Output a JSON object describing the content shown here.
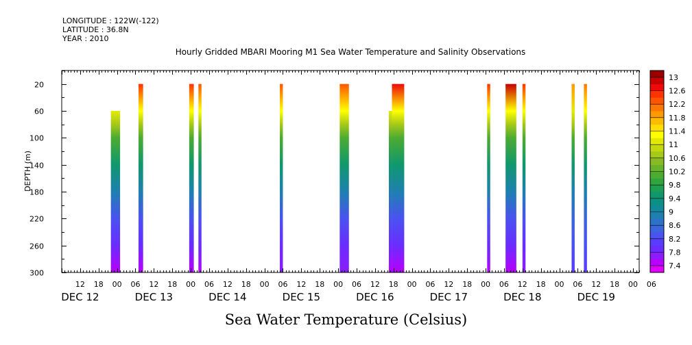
{
  "header": {
    "longitude": "LONGITUDE : 122W(-122)",
    "latitude": "LATITUDE : 36.8N",
    "year": "YEAR : 2010"
  },
  "chart_data": {
    "type": "heatmap",
    "title": "Hourly Gridded MBARI Mooring M1 Sea Water Temperature and Salinity Observations",
    "subtitle": "Sea Water Temperature (Celsius)",
    "xlabel": "",
    "ylabel": "DEPTH (m)",
    "x_unit": "hours since DEC 12 00:00, 2010",
    "xlim": [
      6,
      194
    ],
    "ylim": [
      300,
      0
    ],
    "y_ticks": [
      20,
      60,
      100,
      140,
      180,
      220,
      260,
      300
    ],
    "x_hour_ticks": [
      {
        "t": 12,
        "label": "12"
      },
      {
        "t": 18,
        "label": "18"
      },
      {
        "t": 24,
        "label": "00"
      },
      {
        "t": 30,
        "label": "06"
      },
      {
        "t": 36,
        "label": "12"
      },
      {
        "t": 42,
        "label": "18"
      },
      {
        "t": 48,
        "label": "00"
      },
      {
        "t": 54,
        "label": "06"
      },
      {
        "t": 60,
        "label": "12"
      },
      {
        "t": 66,
        "label": "18"
      },
      {
        "t": 72,
        "label": "00"
      },
      {
        "t": 78,
        "label": "06"
      },
      {
        "t": 84,
        "label": "12"
      },
      {
        "t": 90,
        "label": "18"
      },
      {
        "t": 96,
        "label": "00"
      },
      {
        "t": 102,
        "label": "06"
      },
      {
        "t": 108,
        "label": "12"
      },
      {
        "t": 114,
        "label": "18"
      },
      {
        "t": 120,
        "label": "00"
      },
      {
        "t": 126,
        "label": "06"
      },
      {
        "t": 132,
        "label": "12"
      },
      {
        "t": 138,
        "label": "18"
      },
      {
        "t": 144,
        "label": "00"
      },
      {
        "t": 150,
        "label": "06"
      },
      {
        "t": 156,
        "label": "12"
      },
      {
        "t": 162,
        "label": "18"
      },
      {
        "t": 168,
        "label": "00"
      },
      {
        "t": 174,
        "label": "06"
      },
      {
        "t": 180,
        "label": "12"
      },
      {
        "t": 186,
        "label": "18"
      },
      {
        "t": 192,
        "label": "00"
      },
      {
        "t": 198,
        "label": "06"
      }
    ],
    "x_day_labels": [
      {
        "t": 12,
        "label": "DEC 12"
      },
      {
        "t": 36,
        "label": "DEC 13"
      },
      {
        "t": 60,
        "label": "DEC 14"
      },
      {
        "t": 84,
        "label": "DEC 15"
      },
      {
        "t": 108,
        "label": "DEC 16"
      },
      {
        "t": 132,
        "label": "DEC 17"
      },
      {
        "t": 156,
        "label": "DEC 18"
      },
      {
        "t": 180,
        "label": "DEC 19"
      }
    ],
    "colorbar": {
      "levels": [
        7.4,
        7.6,
        7.8,
        8.0,
        8.2,
        8.4,
        8.6,
        8.8,
        9.0,
        9.2,
        9.4,
        9.6,
        9.8,
        10.0,
        10.2,
        10.4,
        10.6,
        10.8,
        11.0,
        11.2,
        11.4,
        11.6,
        11.8,
        12.0,
        12.2,
        12.4,
        12.6,
        12.8,
        13.0
      ],
      "labels": [
        "7.4",
        "7.8",
        "8.2",
        "8.6",
        "9",
        "9.4",
        "9.8",
        "10.2",
        "10.6",
        "11",
        "11.4",
        "11.8",
        "12.2",
        "12.6",
        "13"
      ],
      "colors": [
        "#e100ff",
        "#b800ff",
        "#8c1cff",
        "#6a2cff",
        "#5a3cff",
        "#4a52f0",
        "#3a66dd",
        "#2c72c8",
        "#1e80b0",
        "#11899a",
        "#0b9184",
        "#0f986d",
        "#1c9f52",
        "#30a53c",
        "#4cab31",
        "#68b22c",
        "#88bb22",
        "#a6c818",
        "#c4d80e",
        "#e2ea04",
        "#ffff00",
        "#ffdd00",
        "#ffbb00",
        "#ff9900",
        "#ff7700",
        "#ff5500",
        "#ff3300",
        "#ee0a0a",
        "#c80000",
        "#9a0000"
      ]
    },
    "columns": [
      {
        "t0": 22.0,
        "t1": 25.0,
        "top": 60,
        "bottom": 300,
        "temps": [
          [
            60,
            11.1
          ],
          [
            80,
            10.6
          ],
          [
            100,
            10.0
          ],
          [
            140,
            9.4
          ],
          [
            180,
            8.9
          ],
          [
            220,
            8.3
          ],
          [
            260,
            7.9
          ],
          [
            300,
            7.5
          ]
        ]
      },
      {
        "t0": 31.0,
        "t1": 32.5,
        "top": 20,
        "bottom": 300,
        "temps": [
          [
            20,
            12.4
          ],
          [
            60,
            11.3
          ],
          [
            80,
            10.6
          ],
          [
            100,
            10.1
          ],
          [
            140,
            9.4
          ],
          [
            180,
            8.9
          ],
          [
            220,
            8.3
          ],
          [
            260,
            7.9
          ],
          [
            300,
            7.5
          ]
        ]
      },
      {
        "t0": 47.5,
        "t1": 49.0,
        "top": 20,
        "bottom": 300,
        "temps": [
          [
            20,
            12.4
          ],
          [
            60,
            11.3
          ],
          [
            80,
            10.6
          ],
          [
            100,
            10.1
          ],
          [
            140,
            9.4
          ],
          [
            180,
            8.9
          ],
          [
            220,
            8.3
          ],
          [
            260,
            7.9
          ],
          [
            300,
            7.5
          ]
        ]
      },
      {
        "t0": 50.5,
        "t1": 51.5,
        "top": 20,
        "bottom": 300,
        "temps": [
          [
            20,
            12.2
          ],
          [
            60,
            11.2
          ],
          [
            80,
            10.6
          ],
          [
            100,
            10.1
          ],
          [
            140,
            9.4
          ],
          [
            180,
            8.9
          ],
          [
            220,
            8.3
          ],
          [
            260,
            7.9
          ],
          [
            300,
            7.5
          ]
        ]
      },
      {
        "t0": 77.0,
        "t1": 78.0,
        "top": 20,
        "bottom": 300,
        "temps": [
          [
            20,
            12.2
          ],
          [
            60,
            11.3
          ],
          [
            80,
            10.6
          ],
          [
            100,
            10.1
          ],
          [
            140,
            9.4
          ],
          [
            180,
            8.9
          ],
          [
            220,
            8.3
          ],
          [
            260,
            7.9
          ],
          [
            300,
            7.6
          ]
        ]
      },
      {
        "t0": 96.5,
        "t1": 99.5,
        "top": 20,
        "bottom": 300,
        "temps": [
          [
            20,
            12.2
          ],
          [
            60,
            11.3
          ],
          [
            80,
            10.7
          ],
          [
            100,
            10.1
          ],
          [
            140,
            9.4
          ],
          [
            180,
            8.9
          ],
          [
            220,
            8.3
          ],
          [
            260,
            7.9
          ],
          [
            300,
            7.6
          ]
        ]
      },
      {
        "t0": 112.5,
        "t1": 113.5,
        "top": 60,
        "bottom": 300,
        "temps": [
          [
            60,
            11.1
          ],
          [
            80,
            10.6
          ],
          [
            100,
            10.0
          ],
          [
            140,
            9.4
          ],
          [
            180,
            8.9
          ],
          [
            220,
            8.3
          ],
          [
            260,
            7.9
          ],
          [
            300,
            7.5
          ]
        ]
      },
      {
        "t0": 113.5,
        "t1": 117.5,
        "top": 20,
        "bottom": 300,
        "temps": [
          [
            20,
            12.6
          ],
          [
            60,
            11.3
          ],
          [
            80,
            10.7
          ],
          [
            100,
            10.1
          ],
          [
            140,
            9.4
          ],
          [
            180,
            8.9
          ],
          [
            220,
            8.3
          ],
          [
            260,
            7.9
          ],
          [
            300,
            7.5
          ]
        ]
      },
      {
        "t0": 144.5,
        "t1": 145.5,
        "top": 20,
        "bottom": 300,
        "temps": [
          [
            20,
            12.4
          ],
          [
            60,
            11.2
          ],
          [
            80,
            10.6
          ],
          [
            100,
            10.1
          ],
          [
            140,
            9.4
          ],
          [
            180,
            8.9
          ],
          [
            220,
            8.3
          ],
          [
            260,
            7.9
          ],
          [
            300,
            7.5
          ]
        ]
      },
      {
        "t0": 150.5,
        "t1": 154.0,
        "top": 20,
        "bottom": 300,
        "temps": [
          [
            20,
            12.8
          ],
          [
            60,
            11.3
          ],
          [
            80,
            10.6
          ],
          [
            100,
            10.1
          ],
          [
            140,
            9.4
          ],
          [
            180,
            8.9
          ],
          [
            220,
            8.3
          ],
          [
            260,
            7.9
          ],
          [
            300,
            7.5
          ]
        ]
      },
      {
        "t0": 156.0,
        "t1": 157.0,
        "top": 20,
        "bottom": 300,
        "temps": [
          [
            20,
            12.4
          ],
          [
            60,
            11.3
          ],
          [
            80,
            10.6
          ],
          [
            100,
            10.1
          ],
          [
            140,
            9.4
          ],
          [
            180,
            8.9
          ],
          [
            220,
            8.3
          ],
          [
            260,
            7.9
          ],
          [
            300,
            7.6
          ]
        ]
      },
      {
        "t0": 172.0,
        "t1": 173.0,
        "top": 20,
        "bottom": 300,
        "temps": [
          [
            20,
            11.8
          ],
          [
            60,
            11.1
          ],
          [
            80,
            10.6
          ],
          [
            100,
            10.0
          ],
          [
            140,
            9.4
          ],
          [
            180,
            8.9
          ],
          [
            220,
            8.4
          ],
          [
            260,
            8.2
          ],
          [
            300,
            8.1
          ]
        ]
      },
      {
        "t0": 176.0,
        "t1": 177.0,
        "top": 20,
        "bottom": 300,
        "temps": [
          [
            20,
            12.0
          ],
          [
            60,
            11.2
          ],
          [
            80,
            10.6
          ],
          [
            100,
            10.0
          ],
          [
            140,
            9.4
          ],
          [
            180,
            8.9
          ],
          [
            220,
            8.4
          ],
          [
            260,
            8.2
          ],
          [
            300,
            8.1
          ]
        ]
      }
    ]
  }
}
